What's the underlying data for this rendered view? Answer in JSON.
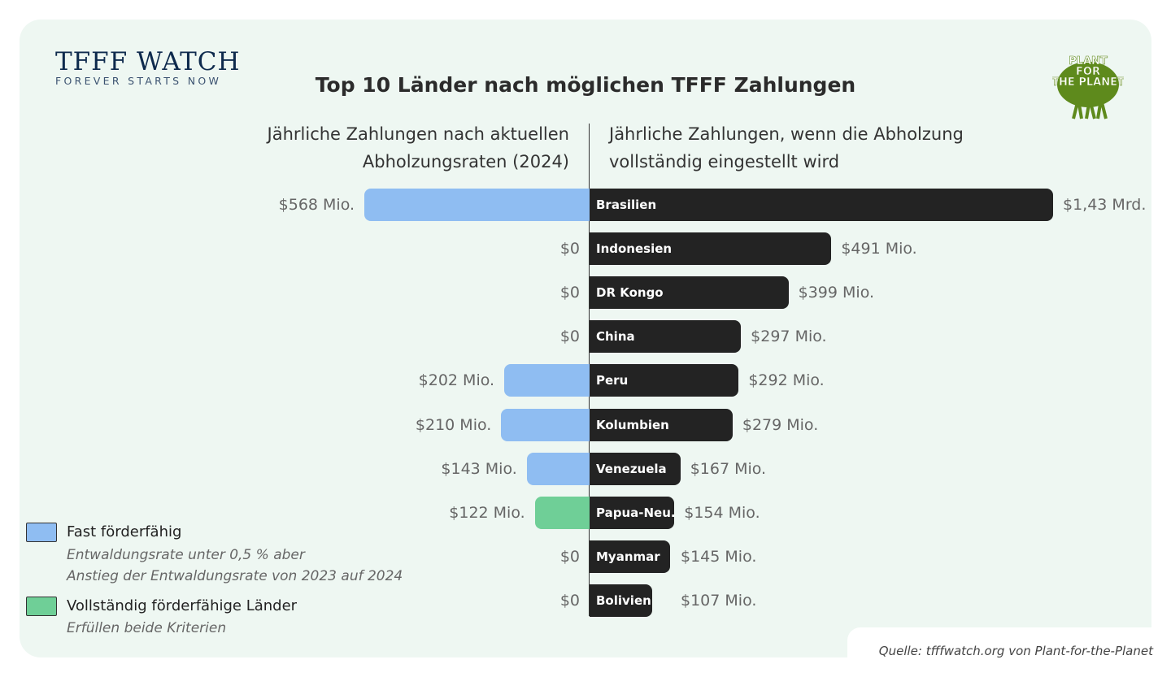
{
  "logo": {
    "tfff_title": "TFFF WATCH",
    "tfff_tagline": "FOREVER STARTS NOW",
    "partner": "PLANT FOR THE PLANET"
  },
  "chart_data": {
    "type": "bar",
    "orientation": "horizontal-diverging",
    "title": "Top 10 Länder nach möglichen TFFF Zahlungen",
    "left_header": "Jährliche Zahlungen nach aktuellen Abholzungsraten (2024)",
    "right_header": "Jährliche Zahlungen, wenn die Abholzung vollständig eingestellt wird",
    "unit": "Mio. USD",
    "categories": [
      "Brasilien",
      "Indonesien",
      "DR Kongo",
      "China",
      "Peru",
      "Kolumbien",
      "Venezuela",
      "Papua-Neu.",
      "Myanmar",
      "Bolivien"
    ],
    "series": [
      {
        "values": [
          568,
          0,
          0,
          0,
          202,
          210,
          143,
          122,
          0,
          0
        ],
        "labels": [
          "$568 Mio.",
          "$0",
          "$0",
          "$0",
          "$202 Mio.",
          "$210 Mio.",
          "$143 Mio.",
          "$122 Mio.",
          "$0",
          "$0"
        ],
        "categories_color": [
          "almost",
          "none",
          "none",
          "none",
          "almost",
          "almost",
          "almost",
          "full",
          "none",
          "none"
        ]
      },
      {
        "values": [
          1430,
          491,
          399,
          297,
          292,
          279,
          167,
          154,
          145,
          107
        ],
        "labels": [
          "$1,43 Mrd.",
          "$491 Mio.",
          "$399 Mio.",
          "$297 Mio.",
          "$292 Mio.",
          "$279 Mio.",
          "$167 Mio.",
          "$154 Mio.",
          "$145 Mio.",
          "$107 Mio."
        ]
      }
    ],
    "colors": {
      "almost": "#8fbdf2",
      "full": "#6fcf97",
      "right": "#232323"
    },
    "legend": [
      {
        "key": "almost",
        "label": "Fast förderfähig",
        "note1": "Entwaldungsrate unter 0,5 % aber",
        "note2": "Anstieg der Entwaldungsrate von 2023 auf 2024"
      },
      {
        "key": "full",
        "label": "Vollständig förderfähige Länder",
        "note1": "Erfüllen beide Kriterien"
      }
    ],
    "legend_position": "bottom-left"
  },
  "source": "Quelle: tfffwatch.org von Plant-for-the-Planet"
}
